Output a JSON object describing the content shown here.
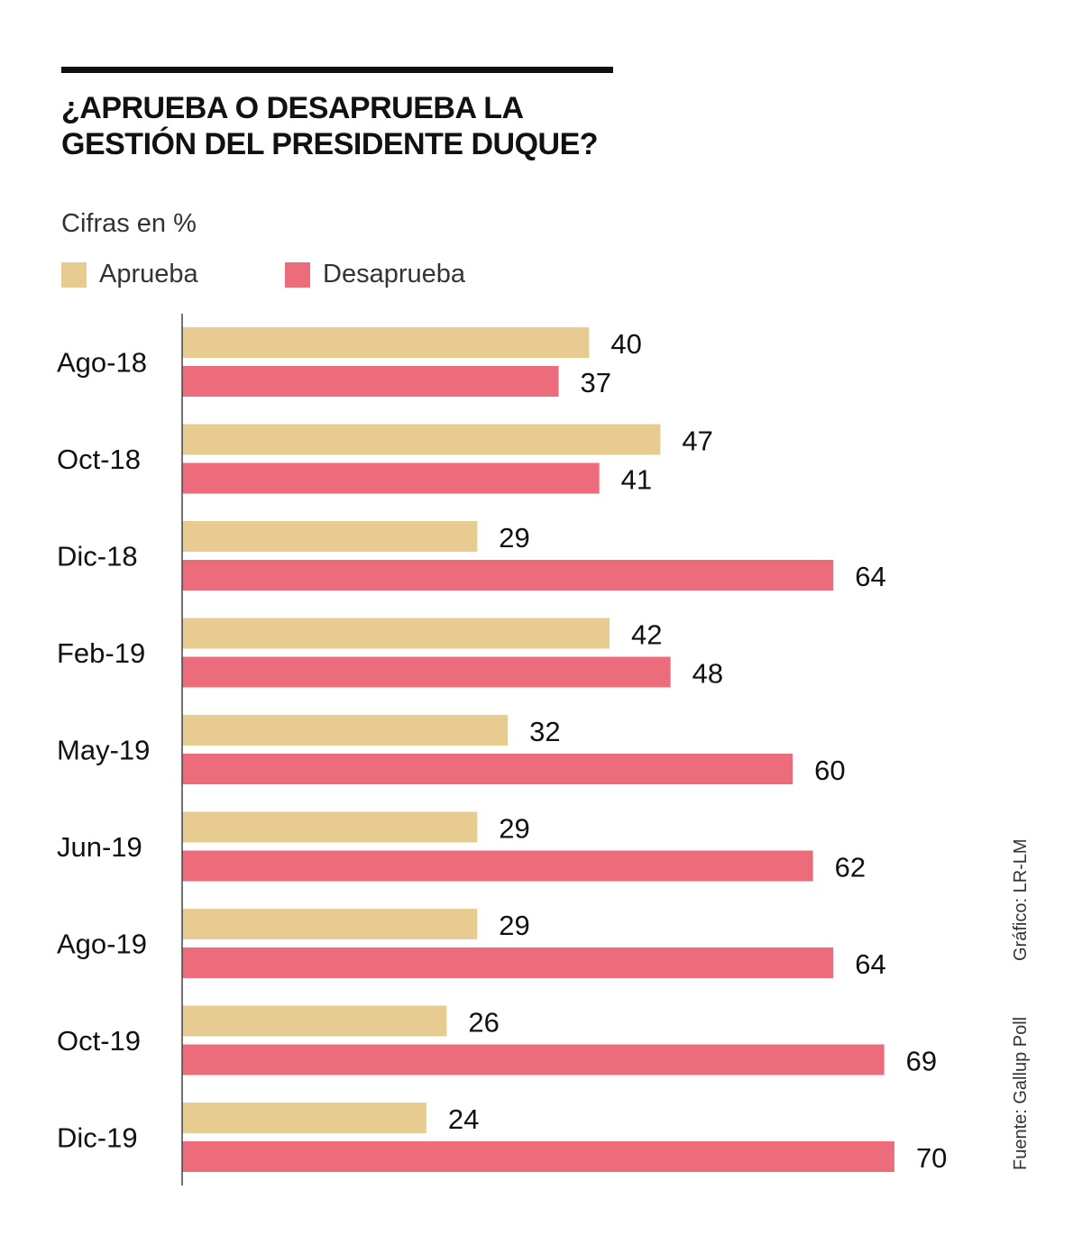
{
  "chart_data": {
    "type": "bar",
    "orientation": "horizontal",
    "title": "¿APRUEBA O DESAPRUEBA LA GESTIÓN DEL PRESIDENTE DUQUE?",
    "title_lines": [
      "¿APRUEBA O DESAPRUEBA LA",
      "GESTIÓN DEL PRESIDENTE DUQUE?"
    ],
    "subtitle": "Cifras en %",
    "categories": [
      "Ago-18",
      "Oct-18",
      "Dic-18",
      "Feb-19",
      "May-19",
      "Jun-19",
      "Ago-19",
      "Oct-19",
      "Dic-19"
    ],
    "series": [
      {
        "name": "Aprueba",
        "color": "#E8CB91",
        "values": [
          40,
          47,
          29,
          42,
          32,
          29,
          29,
          26,
          24
        ]
      },
      {
        "name": "Desaprueba",
        "color": "#EC6C7C",
        "values": [
          37,
          41,
          64,
          48,
          60,
          62,
          64,
          69,
          70
        ]
      }
    ],
    "xlim": [
      0,
      70
    ],
    "grid": false,
    "legend": "top-left",
    "data_labels": true,
    "source": "Fuente: Gallup Poll",
    "credit": "Gráfico: LR-LM"
  }
}
